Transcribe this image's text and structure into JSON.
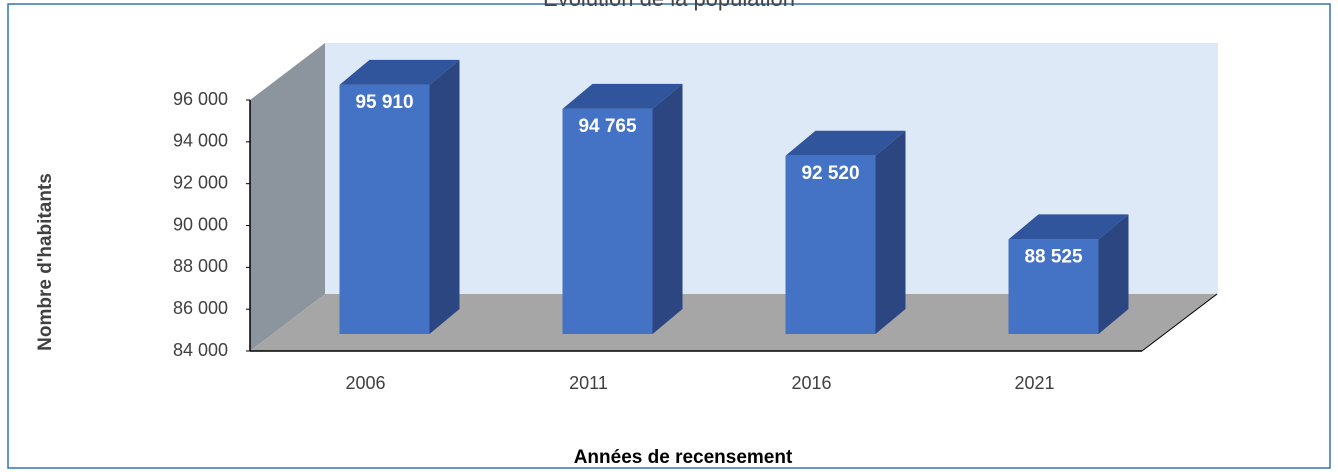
{
  "chart_data": {
    "type": "bar3d",
    "title": "Évolution de la population",
    "categories": [
      "2006",
      "2011",
      "2016",
      "2021"
    ],
    "values": [
      95910,
      94765,
      92520,
      88525
    ],
    "value_labels": [
      "95 910",
      "94 765",
      "92 520",
      "88 525"
    ],
    "color": "#4472c4",
    "ylim": [
      84000,
      96000
    ],
    "yticks": [
      {
        "value": 84000,
        "label": "84 000"
      },
      {
        "value": 86000,
        "label": "86 000"
      },
      {
        "value": 88000,
        "label": "88 000"
      },
      {
        "value": 90000,
        "label": "90 000"
      },
      {
        "value": 92000,
        "label": "92 000"
      },
      {
        "value": 94000,
        "label": "94 000"
      },
      {
        "value": 96000,
        "label": "96 000"
      }
    ],
    "ylabel": "Nombre d'habitants",
    "xlabel": "Années de recensement"
  }
}
